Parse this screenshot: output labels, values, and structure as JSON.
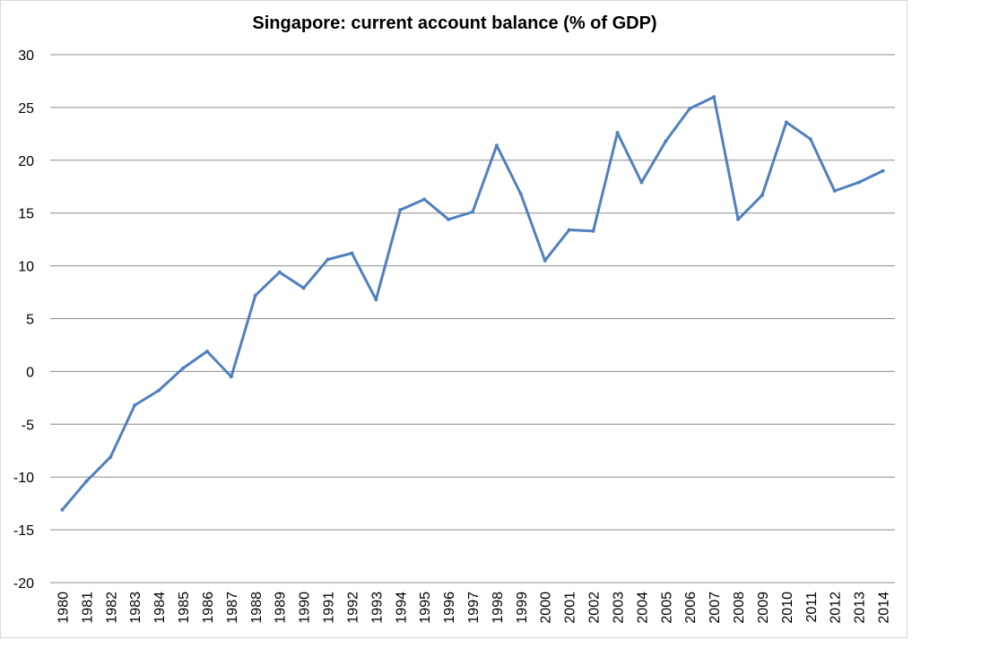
{
  "chart_data": {
    "type": "line",
    "title": "Singapore: current account balance (% of GDP)",
    "xlabel": "",
    "ylabel": "",
    "ylim": [
      -20,
      30
    ],
    "yticks": [
      30,
      25,
      20,
      15,
      10,
      5,
      0,
      -5,
      -10,
      -15,
      -20
    ],
    "grid": true,
    "legend": "none",
    "colors": {
      "line": "#4F81BD",
      "grid": "#8c8c8c"
    },
    "categories": [
      "1980",
      "1981",
      "1982",
      "1983",
      "1984",
      "1985",
      "1986",
      "1987",
      "1988",
      "1989",
      "1990",
      "1991",
      "1992",
      "1993",
      "1994",
      "1995",
      "1996",
      "1997",
      "1998",
      "1999",
      "2000",
      "2001",
      "2002",
      "2003",
      "2004",
      "2005",
      "2006",
      "2007",
      "2008",
      "2009",
      "2010",
      "2011",
      "2012",
      "2013",
      "2014"
    ],
    "series": [
      {
        "values": [
          -13.1,
          -10.4,
          -8.1,
          -3.2,
          -1.8,
          0.3,
          1.9,
          -0.5,
          7.2,
          9.4,
          7.9,
          10.6,
          11.2,
          6.8,
          15.3,
          16.3,
          14.4,
          15.1,
          21.4,
          16.8,
          10.5,
          13.4,
          13.3,
          22.6,
          17.9,
          21.8,
          24.9,
          26.0,
          14.4,
          16.7,
          23.6,
          22.0,
          17.1,
          17.9,
          19.0
        ]
      }
    ]
  }
}
